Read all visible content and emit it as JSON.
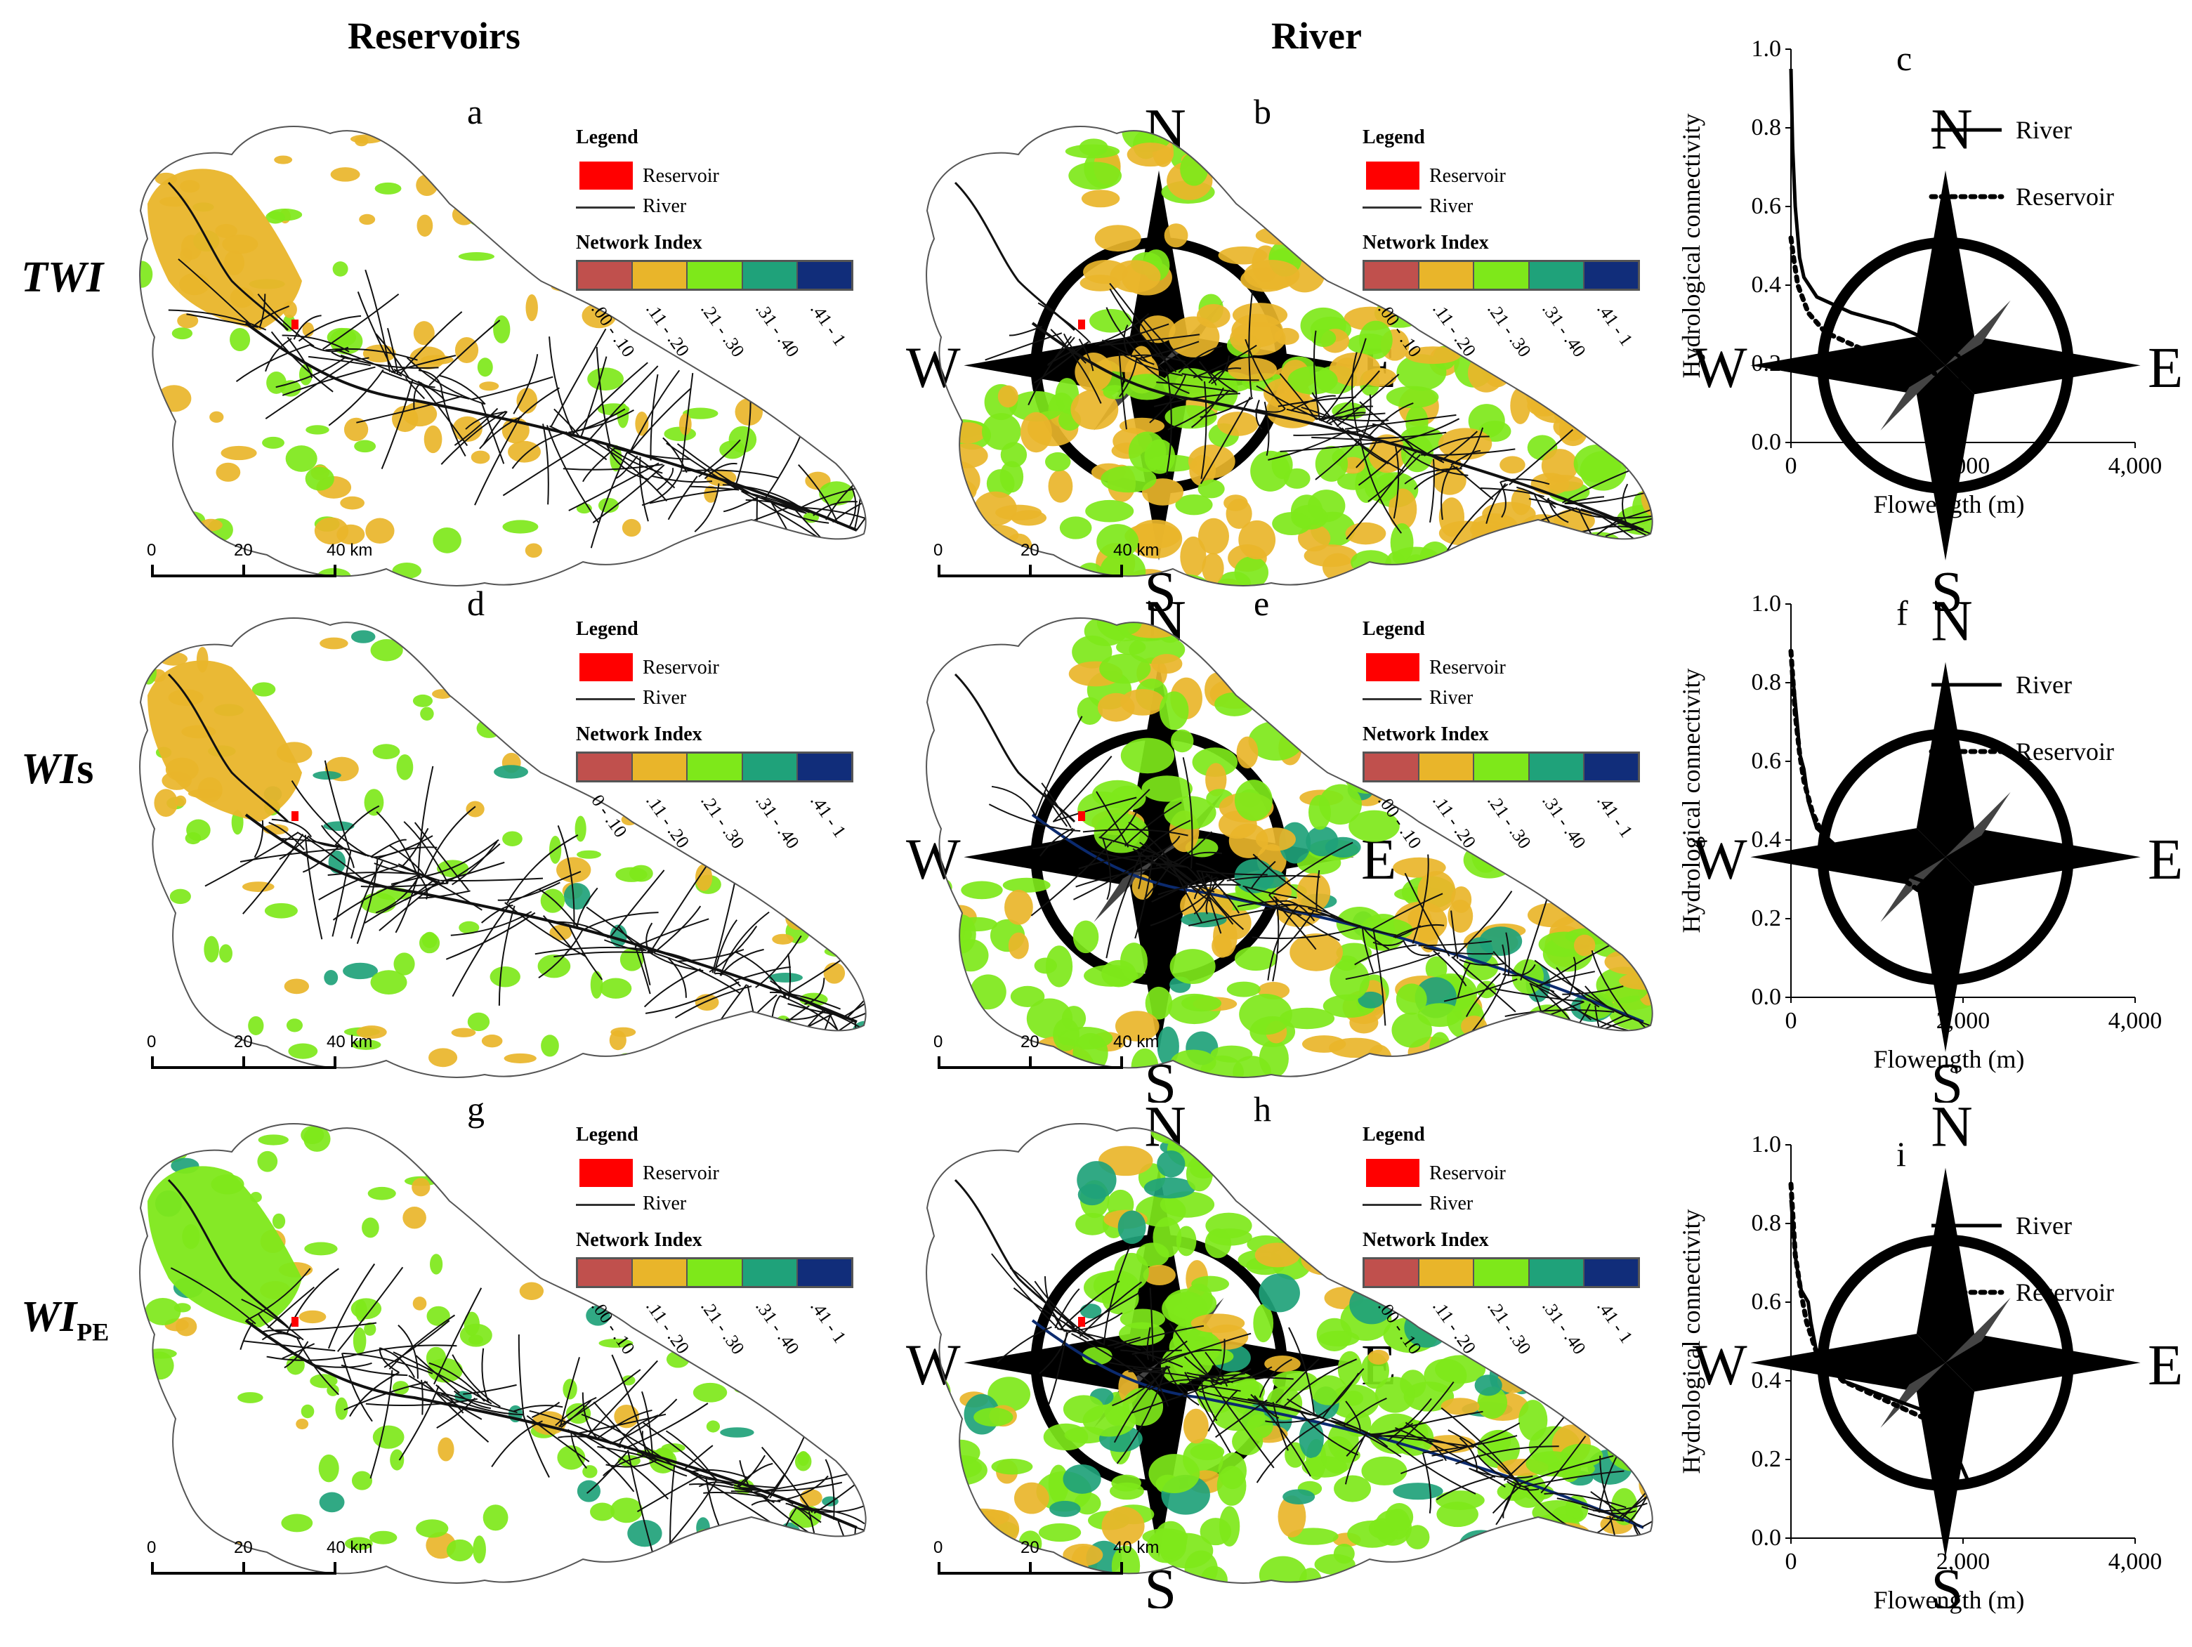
{
  "columns": {
    "reservoirs": "Reservoirs",
    "river": "River"
  },
  "rows": [
    {
      "label": "TWI",
      "sub": ""
    },
    {
      "label": "WI",
      "sub": "s"
    },
    {
      "label": "WI",
      "sub": "PE"
    }
  ],
  "legend": {
    "title": "Legend",
    "reservoir": "Reservoir",
    "river": "River",
    "index_title": "Network Index",
    "classes": [
      "#c0504d",
      "#e9b52a",
      "#7ee81a",
      "#1fa27a",
      "#112d7a"
    ],
    "ticks_a": [
      ".00 - .10",
      ".11 - .20",
      ".21 - .30",
      ".31 - .40",
      ".41 - 1"
    ],
    "ticks_d": [
      "0 - .10",
      ".11 - .20",
      ".21 - .30",
      ".31 - .40",
      ".41 - 1"
    ]
  },
  "compass": {
    "n": "N",
    "s": "S",
    "e": "E",
    "w": "W"
  },
  "scale": {
    "t0": "0",
    "t1": "20",
    "t2": "40 km"
  },
  "maps": [
    {
      "letter": "a",
      "ticks": "ticks_a"
    },
    {
      "letter": "b",
      "ticks": "ticks_a"
    },
    {
      "letter": "d",
      "ticks": "ticks_d"
    },
    {
      "letter": "e",
      "ticks": "ticks_a"
    },
    {
      "letter": "g",
      "ticks": "ticks_a"
    },
    {
      "letter": "h",
      "ticks": "ticks_a"
    }
  ],
  "chart_data": [
    {
      "panel": "c",
      "type": "line",
      "xlabel": "Flowength (m)",
      "ylabel": "Hydrological connectivity",
      "xlim": [
        0,
        4000
      ],
      "ylim": [
        0,
        1
      ],
      "xticks": [
        "0",
        "2,000",
        "4,000"
      ],
      "yticks": [
        "0.0",
        "0.2",
        "0.4",
        "0.6",
        "0.8",
        "1.0"
      ],
      "series": [
        {
          "name": "River",
          "style": "solid",
          "points": [
            [
              0,
              0.95
            ],
            [
              20,
              0.75
            ],
            [
              50,
              0.6
            ],
            [
              100,
              0.47
            ],
            [
              150,
              0.42
            ],
            [
              300,
              0.37
            ],
            [
              700,
              0.33
            ],
            [
              1200,
              0.3
            ],
            [
              1700,
              0.25
            ],
            [
              1950,
              0.22
            ],
            [
              2000,
              0.19
            ],
            [
              1950,
              0.15
            ]
          ]
        },
        {
          "name": "Reservoir",
          "style": "dotted",
          "points": [
            [
              0,
              0.52
            ],
            [
              30,
              0.47
            ],
            [
              80,
              0.4
            ],
            [
              200,
              0.33
            ],
            [
              400,
              0.28
            ],
            [
              800,
              0.24
            ],
            [
              1300,
              0.21
            ],
            [
              1650,
              0.18
            ],
            [
              1780,
              0.15
            ],
            [
              1700,
              0.1
            ]
          ]
        }
      ]
    },
    {
      "panel": "f",
      "type": "line",
      "xlabel": "Flowength (m)",
      "ylabel": "Hydrological connectivity",
      "xlim": [
        0,
        4000
      ],
      "ylim": [
        0,
        1
      ],
      "xticks": [
        "0",
        "2,000",
        "4,000"
      ],
      "yticks": [
        "0.0",
        "0.2",
        "0.4",
        "0.6",
        "0.8",
        "1.0"
      ],
      "series": [
        {
          "name": "River",
          "style": "solid",
          "points": [
            [
              0,
              0.86
            ],
            [
              50,
              0.75
            ],
            [
              80,
              0.68
            ],
            [
              100,
              0.62
            ],
            [
              150,
              0.58
            ],
            [
              200,
              0.5
            ],
            [
              300,
              0.43
            ],
            [
              600,
              0.37
            ],
            [
              1100,
              0.33
            ],
            [
              1600,
              0.29
            ],
            [
              1900,
              0.24
            ],
            [
              2050,
              0.21
            ],
            [
              1950,
              0.17
            ],
            [
              1900,
              0.14
            ]
          ]
        },
        {
          "name": "Reservoir",
          "style": "dotted",
          "points": [
            [
              0,
              0.88
            ],
            [
              50,
              0.72
            ],
            [
              100,
              0.62
            ],
            [
              150,
              0.55
            ],
            [
              250,
              0.47
            ],
            [
              400,
              0.4
            ],
            [
              800,
              0.34
            ],
            [
              1300,
              0.3
            ],
            [
              1700,
              0.24
            ],
            [
              1850,
              0.2
            ],
            [
              1750,
              0.17
            ],
            [
              1700,
              0.13
            ]
          ]
        }
      ]
    },
    {
      "panel": "i",
      "type": "line",
      "xlabel": "Flowength (m)",
      "ylabel": "Hydrological connectivity",
      "xlim": [
        0,
        4000
      ],
      "ylim": [
        0,
        1
      ],
      "xticks": [
        "0",
        "2,000",
        "4,000"
      ],
      "yticks": [
        "0.0",
        "0.2",
        "0.4",
        "0.6",
        "0.8",
        "1.0"
      ],
      "series": [
        {
          "name": "River",
          "style": "solid",
          "points": [
            [
              0,
              0.86
            ],
            [
              60,
              0.7
            ],
            [
              120,
              0.63
            ],
            [
              200,
              0.6
            ],
            [
              230,
              0.55
            ],
            [
              300,
              0.47
            ],
            [
              600,
              0.4
            ],
            [
              1100,
              0.36
            ],
            [
              1600,
              0.32
            ],
            [
              1900,
              0.3
            ],
            [
              1950,
              0.25
            ],
            [
              1950,
              0.2
            ],
            [
              2050,
              0.15
            ]
          ]
        },
        {
          "name": "Reservoir",
          "style": "dotted",
          "points": [
            [
              0,
              0.9
            ],
            [
              50,
              0.72
            ],
            [
              120,
              0.62
            ],
            [
              180,
              0.55
            ],
            [
              300,
              0.47
            ],
            [
              600,
              0.4
            ],
            [
              1200,
              0.34
            ],
            [
              1600,
              0.3
            ],
            [
              1800,
              0.25
            ],
            [
              1700,
              0.2
            ],
            [
              1750,
              0.15
            ]
          ]
        }
      ]
    }
  ]
}
